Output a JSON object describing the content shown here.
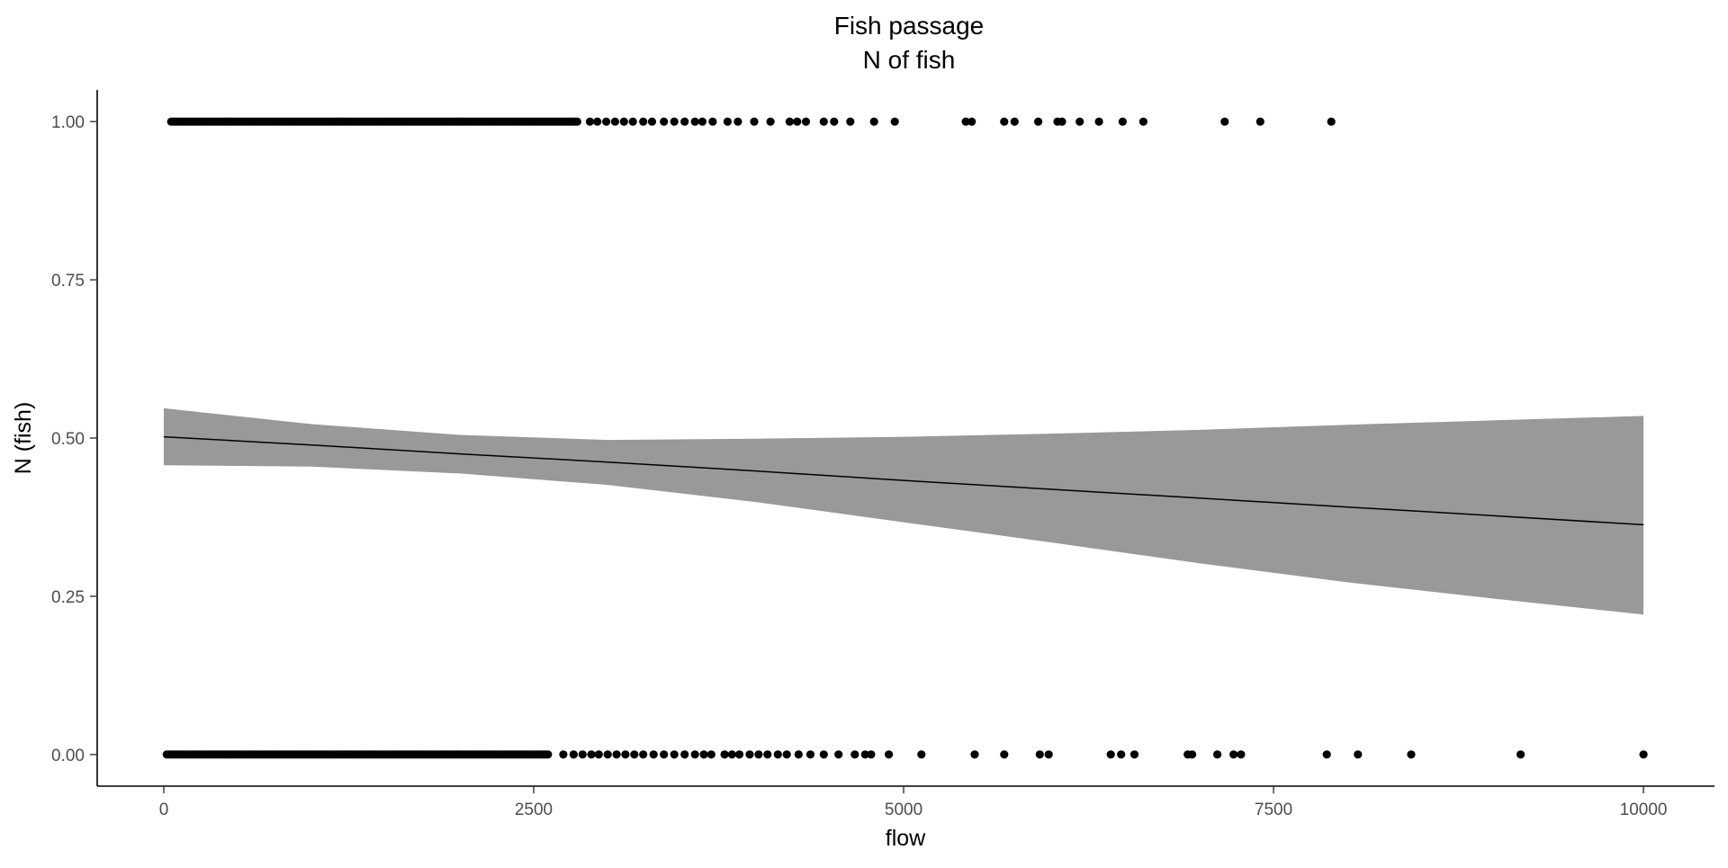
{
  "chart_data": {
    "type": "scatter",
    "title_lines": [
      "Fish passage",
      "N of fish"
    ],
    "xlabel": "flow",
    "ylabel": "N (fish)",
    "xlim": [
      -450,
      10480
    ],
    "ylim": [
      -0.05,
      1.05
    ],
    "x_ticks": [
      0,
      2500,
      5000,
      7500,
      10000
    ],
    "x_tick_labels": [
      "0",
      "2500",
      "5000",
      "7500",
      "10000"
    ],
    "y_ticks": [
      0,
      0.25,
      0.5,
      0.75,
      1
    ],
    "y_tick_labels": [
      "0.00",
      "0.25",
      "0.50",
      "0.75",
      "1.00"
    ],
    "grid": false,
    "legend": "none",
    "point_color": "#000000",
    "ribbon_color": "#999999",
    "line_color": "#000000",
    "points": {
      "y1_dense_range": [
        50,
        2800
      ],
      "y1_x": [
        2880,
        2930,
        2990,
        3050,
        3110,
        3170,
        3240,
        3300,
        3380,
        3450,
        3520,
        3590,
        3640,
        3710,
        3810,
        3880,
        3990,
        4100,
        4230,
        4280,
        4340,
        4460,
        4530,
        4640,
        4800,
        4940,
        5420,
        5460,
        5680,
        5750,
        5910,
        6040,
        6070,
        6190,
        6320,
        6480,
        6620,
        7170,
        7410,
        7890
      ],
      "y0_dense_range": [
        20,
        2600
      ],
      "y0_x": [
        2700,
        2770,
        2830,
        2890,
        2940,
        3000,
        3060,
        3120,
        3180,
        3240,
        3310,
        3380,
        3450,
        3520,
        3590,
        3650,
        3700,
        3790,
        3840,
        3890,
        3960,
        4020,
        4080,
        4150,
        4210,
        4290,
        4370,
        4460,
        4560,
        4670,
        4740,
        4780,
        4900,
        5120,
        5480,
        5680,
        5920,
        5980,
        6400,
        6470,
        6560,
        6920,
        6950,
        7120,
        7230,
        7280,
        7860,
        8070,
        8430,
        9170,
        10000
      ]
    },
    "fit": {
      "x": [
        0,
        1000,
        2000,
        3000,
        4000,
        5000,
        6000,
        7000,
        8000,
        9000,
        10000
      ],
      "y": [
        0.502,
        0.489,
        0.475,
        0.462,
        0.448,
        0.433,
        0.419,
        0.405,
        0.391,
        0.377,
        0.363
      ],
      "ymin": [
        0.457,
        0.455,
        0.444,
        0.426,
        0.399,
        0.367,
        0.335,
        0.302,
        0.272,
        0.246,
        0.221
      ],
      "ymax": [
        0.547,
        0.522,
        0.505,
        0.497,
        0.499,
        0.502,
        0.507,
        0.513,
        0.521,
        0.528,
        0.535
      ]
    }
  }
}
